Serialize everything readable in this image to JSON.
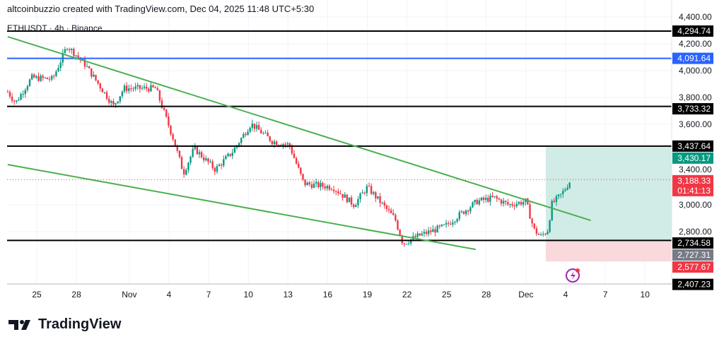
{
  "header": {
    "attribution": "altcoinbuzzio created with TradingView.com, Dec 04, 2025 11:48 UTC+5:30",
    "symbol": "ETHUSDT · 4h · Binance"
  },
  "footer": {
    "brand": "TradingView"
  },
  "chart_data": {
    "type": "candlestick",
    "symbol": "ETHUSDT",
    "interval": "4h",
    "exchange": "Binance",
    "x_ticks": [
      {
        "day": 0,
        "label": "25"
      },
      {
        "day": 3,
        "label": "28"
      },
      {
        "day": 7,
        "label": "Nov"
      },
      {
        "day": 10,
        "label": "4"
      },
      {
        "day": 13,
        "label": "7"
      },
      {
        "day": 16,
        "label": "10"
      },
      {
        "day": 19,
        "label": "13"
      },
      {
        "day": 22,
        "label": "16"
      },
      {
        "day": 25,
        "label": "19"
      },
      {
        "day": 28,
        "label": "22"
      },
      {
        "day": 31,
        "label": "25"
      },
      {
        "day": 34,
        "label": "28"
      },
      {
        "day": 37,
        "label": "Dec"
      },
      {
        "day": 40,
        "label": "4"
      },
      {
        "day": 43,
        "label": "7"
      },
      {
        "day": 46,
        "label": "10"
      }
    ],
    "y_ticks": [
      "4,400.00",
      "4,200.00",
      "4,000.00",
      "3,800.00",
      "3,600.00",
      "3,400.00",
      "3,000.00",
      "2,800.00"
    ],
    "y_tick_values": [
      4400,
      4200,
      4000,
      3800,
      3600,
      3400,
      3000,
      2800
    ],
    "price_path": [
      [
        -2.2,
        3842
      ],
      [
        -1.6,
        3760
      ],
      [
        -0.4,
        3947
      ],
      [
        1.2,
        3937
      ],
      [
        2.3,
        4184
      ],
      [
        3.6,
        4053
      ],
      [
        5.8,
        3737
      ],
      [
        6.6,
        3868
      ],
      [
        9,
        3868
      ],
      [
        10.3,
        3500
      ],
      [
        11.1,
        3237
      ],
      [
        11.9,
        3421
      ],
      [
        13.5,
        3263
      ],
      [
        14.8,
        3395
      ],
      [
        16.2,
        3605
      ],
      [
        17.8,
        3474
      ],
      [
        19.1,
        3447
      ],
      [
        20.2,
        3158
      ],
      [
        22.4,
        3132
      ],
      [
        24,
        3000
      ],
      [
        25,
        3132
      ],
      [
        27.1,
        2895
      ],
      [
        27.7,
        2711
      ],
      [
        28.7,
        2763
      ],
      [
        30.9,
        2842
      ],
      [
        31.9,
        2921
      ],
      [
        33.3,
        3026
      ],
      [
        34.6,
        3053
      ],
      [
        35.7,
        3000
      ],
      [
        37,
        3026
      ],
      [
        37.6,
        2816
      ],
      [
        38.1,
        2763
      ],
      [
        38.7,
        2816
      ],
      [
        38.9,
        3000
      ],
      [
        39.7,
        3079
      ],
      [
        40.4,
        3188
      ]
    ],
    "horizontal_levels": [
      {
        "price": 4294.74,
        "label": "4,294.74",
        "color": "#000000"
      },
      {
        "price": 4091.64,
        "label": "4,091.64",
        "color": "#2962ff"
      },
      {
        "price": 3733.32,
        "label": "3,733.32",
        "color": "#000000"
      },
      {
        "price": 3437.64,
        "label": "3,437.64",
        "color": "#000000"
      },
      {
        "price": 2734.58,
        "label": "2,734.58",
        "color": "#000000"
      }
    ],
    "trendlines": [
      {
        "from": [
          -2.2,
          4253
        ],
        "to": [
          41.9,
          2884
        ],
        "color": "#4caf50"
      },
      {
        "from": [
          -2.2,
          3300
        ],
        "to": [
          33.2,
          2668
        ],
        "color": "#4caf50"
      }
    ],
    "position": {
      "start_day": 38.5,
      "target": 3430.17,
      "target_label": "3,430.17",
      "entry": 2727.31,
      "entry_label": "2,727.31",
      "stop": 2577.67,
      "stop_label": "2,577.67"
    },
    "last_price": {
      "value": 3188.33,
      "label": "3,188.33",
      "countdown": "01:41:13"
    },
    "extra_label": {
      "price": 2407.23,
      "label": "2,407.23"
    },
    "colors": {
      "up": "#089981",
      "down": "#f23645",
      "profit_zone": "#d1ebe6",
      "loss_zone": "#f9d9dc",
      "trend": "#4caf50"
    }
  }
}
